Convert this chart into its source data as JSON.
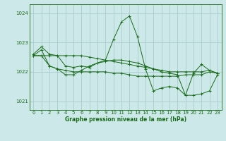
{
  "title": "Graphe pression niveau de la mer (hPa)",
  "background_color": "#cce8e8",
  "grid_color": "#aacccc",
  "line_color": "#1a6b1a",
  "xlim": [
    -0.5,
    23.5
  ],
  "ylim": [
    1020.7,
    1024.3
  ],
  "yticks": [
    1021,
    1022,
    1023,
    1024
  ],
  "xticks": [
    0,
    1,
    2,
    3,
    4,
    5,
    6,
    7,
    8,
    9,
    10,
    11,
    12,
    13,
    14,
    15,
    16,
    17,
    18,
    19,
    20,
    21,
    22,
    23
  ],
  "series": [
    [
      1022.55,
      1022.55,
      1022.55,
      1022.55,
      1022.55,
      1022.55,
      1022.55,
      1022.5,
      1022.45,
      1022.4,
      1022.35,
      1022.3,
      1022.25,
      1022.2,
      1022.15,
      1022.1,
      1022.05,
      1022.0,
      1022.0,
      1022.0,
      1022.0,
      1022.0,
      1022.05,
      1021.95
    ],
    [
      1022.6,
      1022.85,
      1022.6,
      1022.55,
      1022.2,
      1022.15,
      1022.2,
      1022.15,
      1022.3,
      1022.4,
      1023.1,
      1023.7,
      1023.9,
      1023.2,
      1022.1,
      1021.35,
      1021.45,
      1021.5,
      1021.45,
      1021.2,
      1021.95,
      1022.25,
      1022.05,
      1021.95
    ],
    [
      1022.55,
      1022.75,
      1022.2,
      1022.1,
      1021.9,
      1021.9,
      1022.05,
      1022.2,
      1022.3,
      1022.35,
      1022.4,
      1022.4,
      1022.35,
      1022.3,
      1022.2,
      1022.1,
      1022.0,
      1021.95,
      1021.9,
      1021.2,
      1021.2,
      1021.25,
      1021.35,
      1021.9
    ],
    [
      1022.55,
      1022.55,
      1022.2,
      1022.1,
      1022.05,
      1022.0,
      1022.0,
      1022.0,
      1022.0,
      1022.0,
      1021.95,
      1021.95,
      1021.9,
      1021.85,
      1021.85,
      1021.85,
      1021.85,
      1021.85,
      1021.85,
      1021.9,
      1021.9,
      1021.9,
      1022.0,
      1021.95
    ]
  ]
}
